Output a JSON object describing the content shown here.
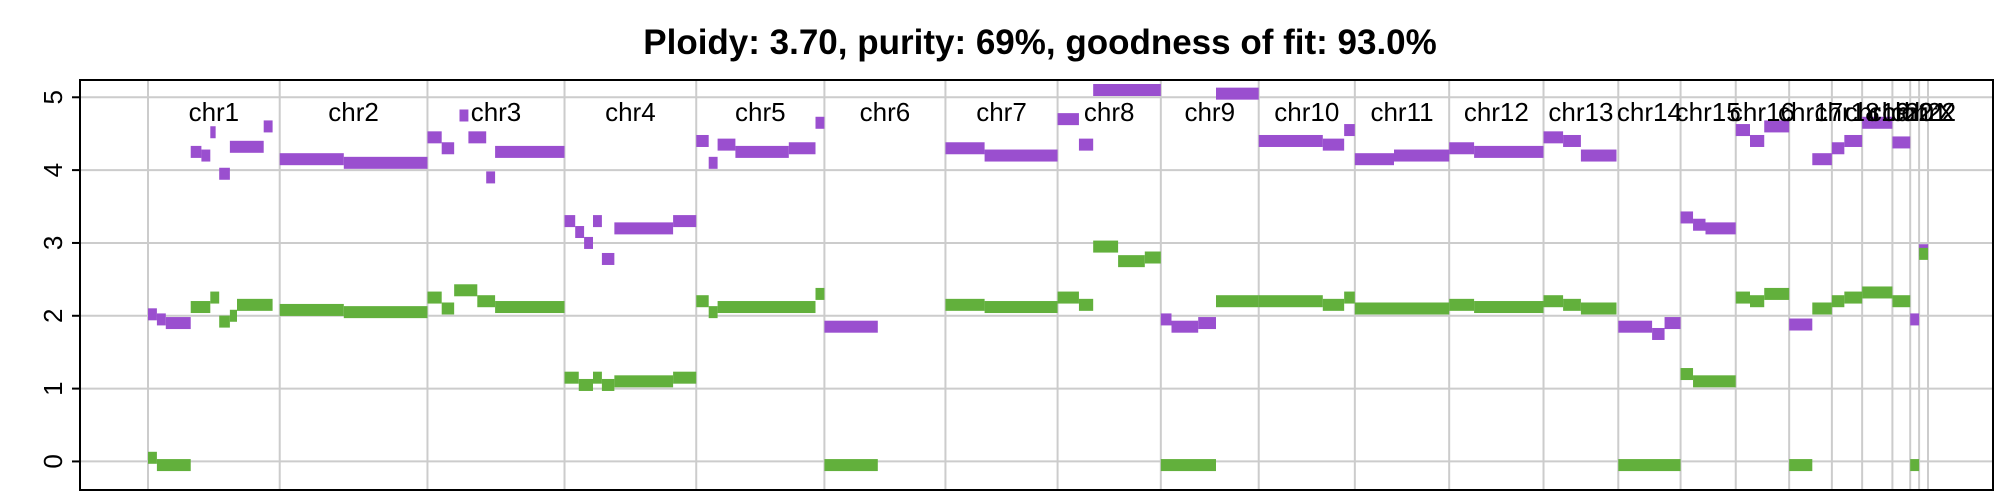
{
  "chart_data": {
    "type": "scatter",
    "title": "Ploidy: 3.70, purity: 69%, goodness of fit: 93.0%",
    "xlabel": "",
    "ylabel": "",
    "ylim": [
      -0.2,
      5.1
    ],
    "yticks": [
      0,
      1,
      2,
      3,
      4,
      5
    ],
    "grid": true,
    "legend": "none",
    "colors": {
      "major": "#9a4fcf",
      "minor": "#62b03c"
    },
    "chromosomes": [
      {
        "name": "chr1",
        "start": 0.0,
        "end": 0.074
      },
      {
        "name": "chr2",
        "start": 0.074,
        "end": 0.157
      },
      {
        "name": "chr3",
        "start": 0.157,
        "end": 0.234
      },
      {
        "name": "chr4",
        "start": 0.234,
        "end": 0.308
      },
      {
        "name": "chr5",
        "start": 0.308,
        "end": 0.38
      },
      {
        "name": "chr6",
        "start": 0.38,
        "end": 0.448
      },
      {
        "name": "chr7",
        "start": 0.448,
        "end": 0.511
      },
      {
        "name": "chr8",
        "start": 0.511,
        "end": 0.569
      },
      {
        "name": "chr9",
        "start": 0.569,
        "end": 0.624
      },
      {
        "name": "chr10",
        "start": 0.624,
        "end": 0.678
      },
      {
        "name": "chr11",
        "start": 0.678,
        "end": 0.731
      },
      {
        "name": "chr12",
        "start": 0.731,
        "end": 0.784
      },
      {
        "name": "chr13",
        "start": 0.784,
        "end": 0.826
      },
      {
        "name": "chr14",
        "start": 0.826,
        "end": 0.861
      },
      {
        "name": "chr15",
        "start": 0.861,
        "end": 0.892
      },
      {
        "name": "chr16",
        "start": 0.892,
        "end": 0.922
      },
      {
        "name": "chr17",
        "start": 0.922,
        "end": 0.946
      },
      {
        "name": "chr18",
        "start": 0.946,
        "end": 0.963
      },
      {
        "name": "chr19",
        "start": 0.963,
        "end": 0.98
      },
      {
        "name": "chr20",
        "start": 0.98,
        "end": 0.99
      },
      {
        "name": "chr21",
        "start": 0.99,
        "end": 0.995
      },
      {
        "name": "chr22",
        "start": 0.995,
        "end": 1.0
      },
      {
        "name": "chrX",
        "start": 1.0,
        "end": 1.0
      }
    ],
    "series": [
      {
        "role": "major",
        "segments": [
          [
            0.0,
            0.005,
            2.02
          ],
          [
            0.005,
            0.01,
            1.95
          ],
          [
            0.01,
            0.024,
            1.9
          ],
          [
            0.024,
            0.03,
            4.25
          ],
          [
            0.03,
            0.035,
            4.2
          ],
          [
            0.035,
            0.038,
            4.52
          ],
          [
            0.04,
            0.046,
            3.95
          ],
          [
            0.046,
            0.065,
            4.32
          ],
          [
            0.065,
            0.07,
            4.6
          ],
          [
            0.074,
            0.11,
            4.15
          ],
          [
            0.11,
            0.157,
            4.1
          ],
          [
            0.157,
            0.165,
            4.45
          ],
          [
            0.165,
            0.172,
            4.3
          ],
          [
            0.175,
            0.18,
            4.75
          ],
          [
            0.18,
            0.19,
            4.45
          ],
          [
            0.19,
            0.195,
            3.9
          ],
          [
            0.195,
            0.234,
            4.25
          ],
          [
            0.234,
            0.24,
            3.3
          ],
          [
            0.24,
            0.245,
            3.15
          ],
          [
            0.245,
            0.25,
            3.0
          ],
          [
            0.25,
            0.255,
            3.3
          ],
          [
            0.255,
            0.262,
            2.78
          ],
          [
            0.262,
            0.295,
            3.2
          ],
          [
            0.295,
            0.308,
            3.3
          ],
          [
            0.308,
            0.315,
            4.4
          ],
          [
            0.315,
            0.32,
            4.1
          ],
          [
            0.32,
            0.33,
            4.35
          ],
          [
            0.33,
            0.36,
            4.25
          ],
          [
            0.36,
            0.375,
            4.3
          ],
          [
            0.375,
            0.38,
            4.65
          ],
          [
            0.38,
            0.41,
            1.85
          ],
          [
            0.448,
            0.47,
            4.3
          ],
          [
            0.47,
            0.511,
            4.2
          ],
          [
            0.511,
            0.523,
            4.7
          ],
          [
            0.523,
            0.531,
            4.35
          ],
          [
            0.531,
            0.569,
            5.1
          ],
          [
            0.569,
            0.575,
            1.95
          ],
          [
            0.575,
            0.59,
            1.85
          ],
          [
            0.59,
            0.6,
            1.9
          ],
          [
            0.6,
            0.624,
            5.05
          ],
          [
            0.624,
            0.66,
            4.4
          ],
          [
            0.66,
            0.672,
            4.35
          ],
          [
            0.672,
            0.678,
            4.55
          ],
          [
            0.678,
            0.7,
            4.15
          ],
          [
            0.7,
            0.731,
            4.2
          ],
          [
            0.731,
            0.745,
            4.3
          ],
          [
            0.745,
            0.784,
            4.25
          ],
          [
            0.784,
            0.795,
            4.45
          ],
          [
            0.795,
            0.805,
            4.4
          ],
          [
            0.805,
            0.825,
            4.2
          ],
          [
            0.826,
            0.845,
            1.85
          ],
          [
            0.845,
            0.852,
            1.75
          ],
          [
            0.852,
            0.861,
            1.9
          ],
          [
            0.861,
            0.868,
            3.35
          ],
          [
            0.868,
            0.875,
            3.25
          ],
          [
            0.875,
            0.892,
            3.2
          ],
          [
            0.892,
            0.9,
            4.55
          ],
          [
            0.9,
            0.908,
            4.4
          ],
          [
            0.908,
            0.922,
            4.6
          ],
          [
            0.922,
            0.935,
            1.88
          ],
          [
            0.935,
            0.946,
            4.15
          ],
          [
            0.946,
            0.953,
            4.3
          ],
          [
            0.953,
            0.963,
            4.4
          ],
          [
            0.963,
            0.98,
            4.65
          ],
          [
            0.98,
            0.99,
            4.38
          ],
          [
            0.99,
            0.995,
            1.95
          ],
          [
            0.995,
            1.0,
            2.9
          ]
        ]
      },
      {
        "role": "minor",
        "segments": [
          [
            0.0,
            0.005,
            0.05
          ],
          [
            0.005,
            0.024,
            -0.05
          ],
          [
            0.024,
            0.035,
            2.12
          ],
          [
            0.035,
            0.04,
            2.25
          ],
          [
            0.04,
            0.046,
            1.92
          ],
          [
            0.046,
            0.05,
            2.0
          ],
          [
            0.05,
            0.07,
            2.15
          ],
          [
            0.074,
            0.11,
            2.08
          ],
          [
            0.11,
            0.157,
            2.05
          ],
          [
            0.157,
            0.165,
            2.25
          ],
          [
            0.165,
            0.172,
            2.1
          ],
          [
            0.172,
            0.185,
            2.35
          ],
          [
            0.185,
            0.195,
            2.2
          ],
          [
            0.195,
            0.234,
            2.12
          ],
          [
            0.234,
            0.242,
            1.15
          ],
          [
            0.242,
            0.25,
            1.05
          ],
          [
            0.25,
            0.255,
            1.15
          ],
          [
            0.255,
            0.262,
            1.05
          ],
          [
            0.262,
            0.295,
            1.1
          ],
          [
            0.295,
            0.308,
            1.15
          ],
          [
            0.308,
            0.315,
            2.2
          ],
          [
            0.315,
            0.32,
            2.05
          ],
          [
            0.32,
            0.375,
            2.12
          ],
          [
            0.375,
            0.38,
            2.3
          ],
          [
            0.38,
            0.41,
            -0.05
          ],
          [
            0.448,
            0.47,
            2.15
          ],
          [
            0.47,
            0.511,
            2.12
          ],
          [
            0.511,
            0.523,
            2.25
          ],
          [
            0.523,
            0.531,
            2.15
          ],
          [
            0.531,
            0.545,
            2.95
          ],
          [
            0.545,
            0.56,
            2.75
          ],
          [
            0.56,
            0.569,
            2.8
          ],
          [
            0.569,
            0.6,
            -0.05
          ],
          [
            0.6,
            0.624,
            2.2
          ],
          [
            0.624,
            0.66,
            2.2
          ],
          [
            0.66,
            0.672,
            2.15
          ],
          [
            0.672,
            0.678,
            2.25
          ],
          [
            0.678,
            0.7,
            2.1
          ],
          [
            0.7,
            0.731,
            2.1
          ],
          [
            0.731,
            0.745,
            2.15
          ],
          [
            0.745,
            0.784,
            2.12
          ],
          [
            0.784,
            0.795,
            2.2
          ],
          [
            0.795,
            0.805,
            2.15
          ],
          [
            0.805,
            0.825,
            2.1
          ],
          [
            0.826,
            0.861,
            -0.05
          ],
          [
            0.861,
            0.868,
            1.2
          ],
          [
            0.868,
            0.875,
            1.1
          ],
          [
            0.875,
            0.892,
            1.1
          ],
          [
            0.892,
            0.9,
            2.25
          ],
          [
            0.9,
            0.908,
            2.2
          ],
          [
            0.908,
            0.922,
            2.3
          ],
          [
            0.922,
            0.935,
            -0.05
          ],
          [
            0.935,
            0.946,
            2.1
          ],
          [
            0.946,
            0.953,
            2.2
          ],
          [
            0.953,
            0.963,
            2.25
          ],
          [
            0.963,
            0.98,
            2.32
          ],
          [
            0.98,
            0.99,
            2.2
          ],
          [
            0.99,
            0.995,
            -0.05
          ],
          [
            0.995,
            1.0,
            2.85
          ]
        ]
      }
    ]
  }
}
